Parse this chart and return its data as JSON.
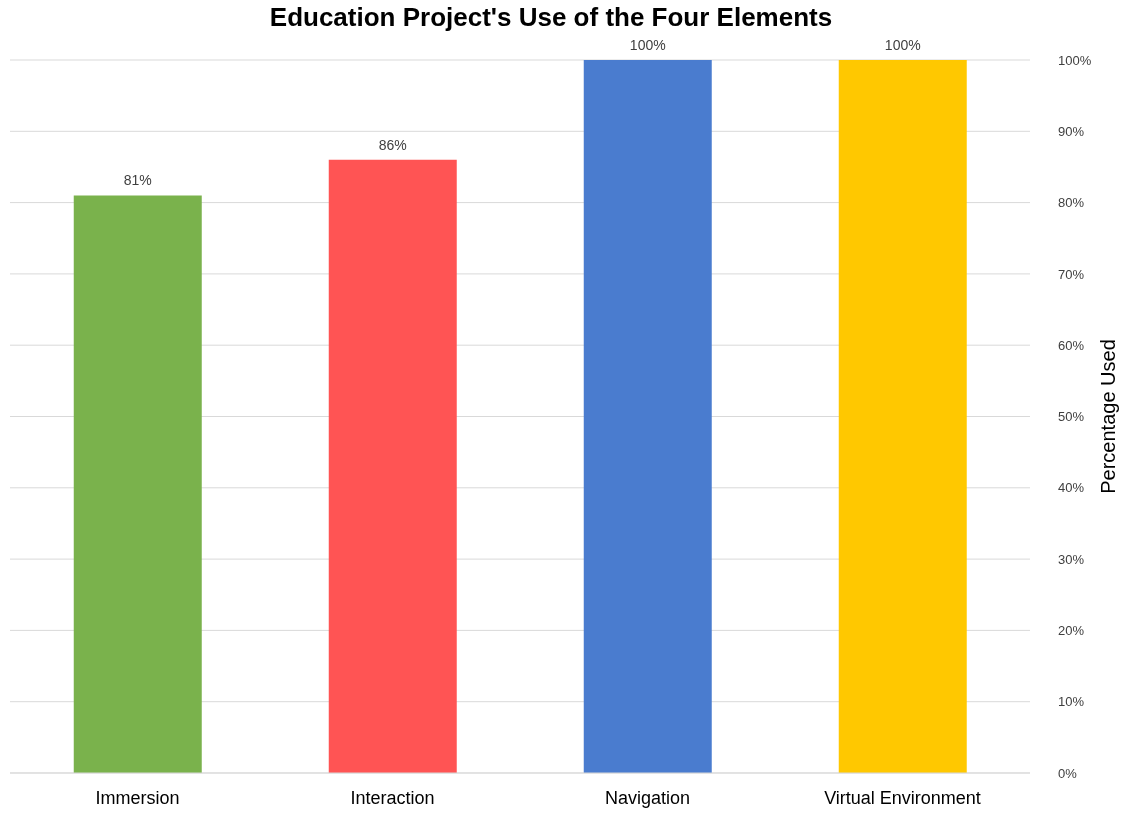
{
  "chart_data": {
    "type": "bar",
    "title": "Education Project's Use of the Four Elements",
    "ylabel": "Percentage Used",
    "categories": [
      "Immersion",
      "Interaction",
      "Navigation",
      "Virtual Environment"
    ],
    "values": [
      81,
      86,
      100,
      100
    ],
    "colors": [
      "#7ab24c",
      "#ff5454",
      "#4a7ccf",
      "#ffc800"
    ],
    "value_labels": [
      "81%",
      "86%",
      "100%",
      "100%"
    ],
    "ylim": [
      0,
      100
    ],
    "yticks": [
      {
        "value": 0,
        "label": "0%"
      },
      {
        "value": 10,
        "label": "10%"
      },
      {
        "value": 20,
        "label": "20%"
      },
      {
        "value": 30,
        "label": "30%"
      },
      {
        "value": 40,
        "label": "40%"
      },
      {
        "value": 50,
        "label": "50%"
      },
      {
        "value": 60,
        "label": "60%"
      },
      {
        "value": 70,
        "label": "70%"
      },
      {
        "value": 80,
        "label": "80%"
      },
      {
        "value": 90,
        "label": "90%"
      },
      {
        "value": 100,
        "label": "100%"
      }
    ],
    "grid": "y"
  }
}
